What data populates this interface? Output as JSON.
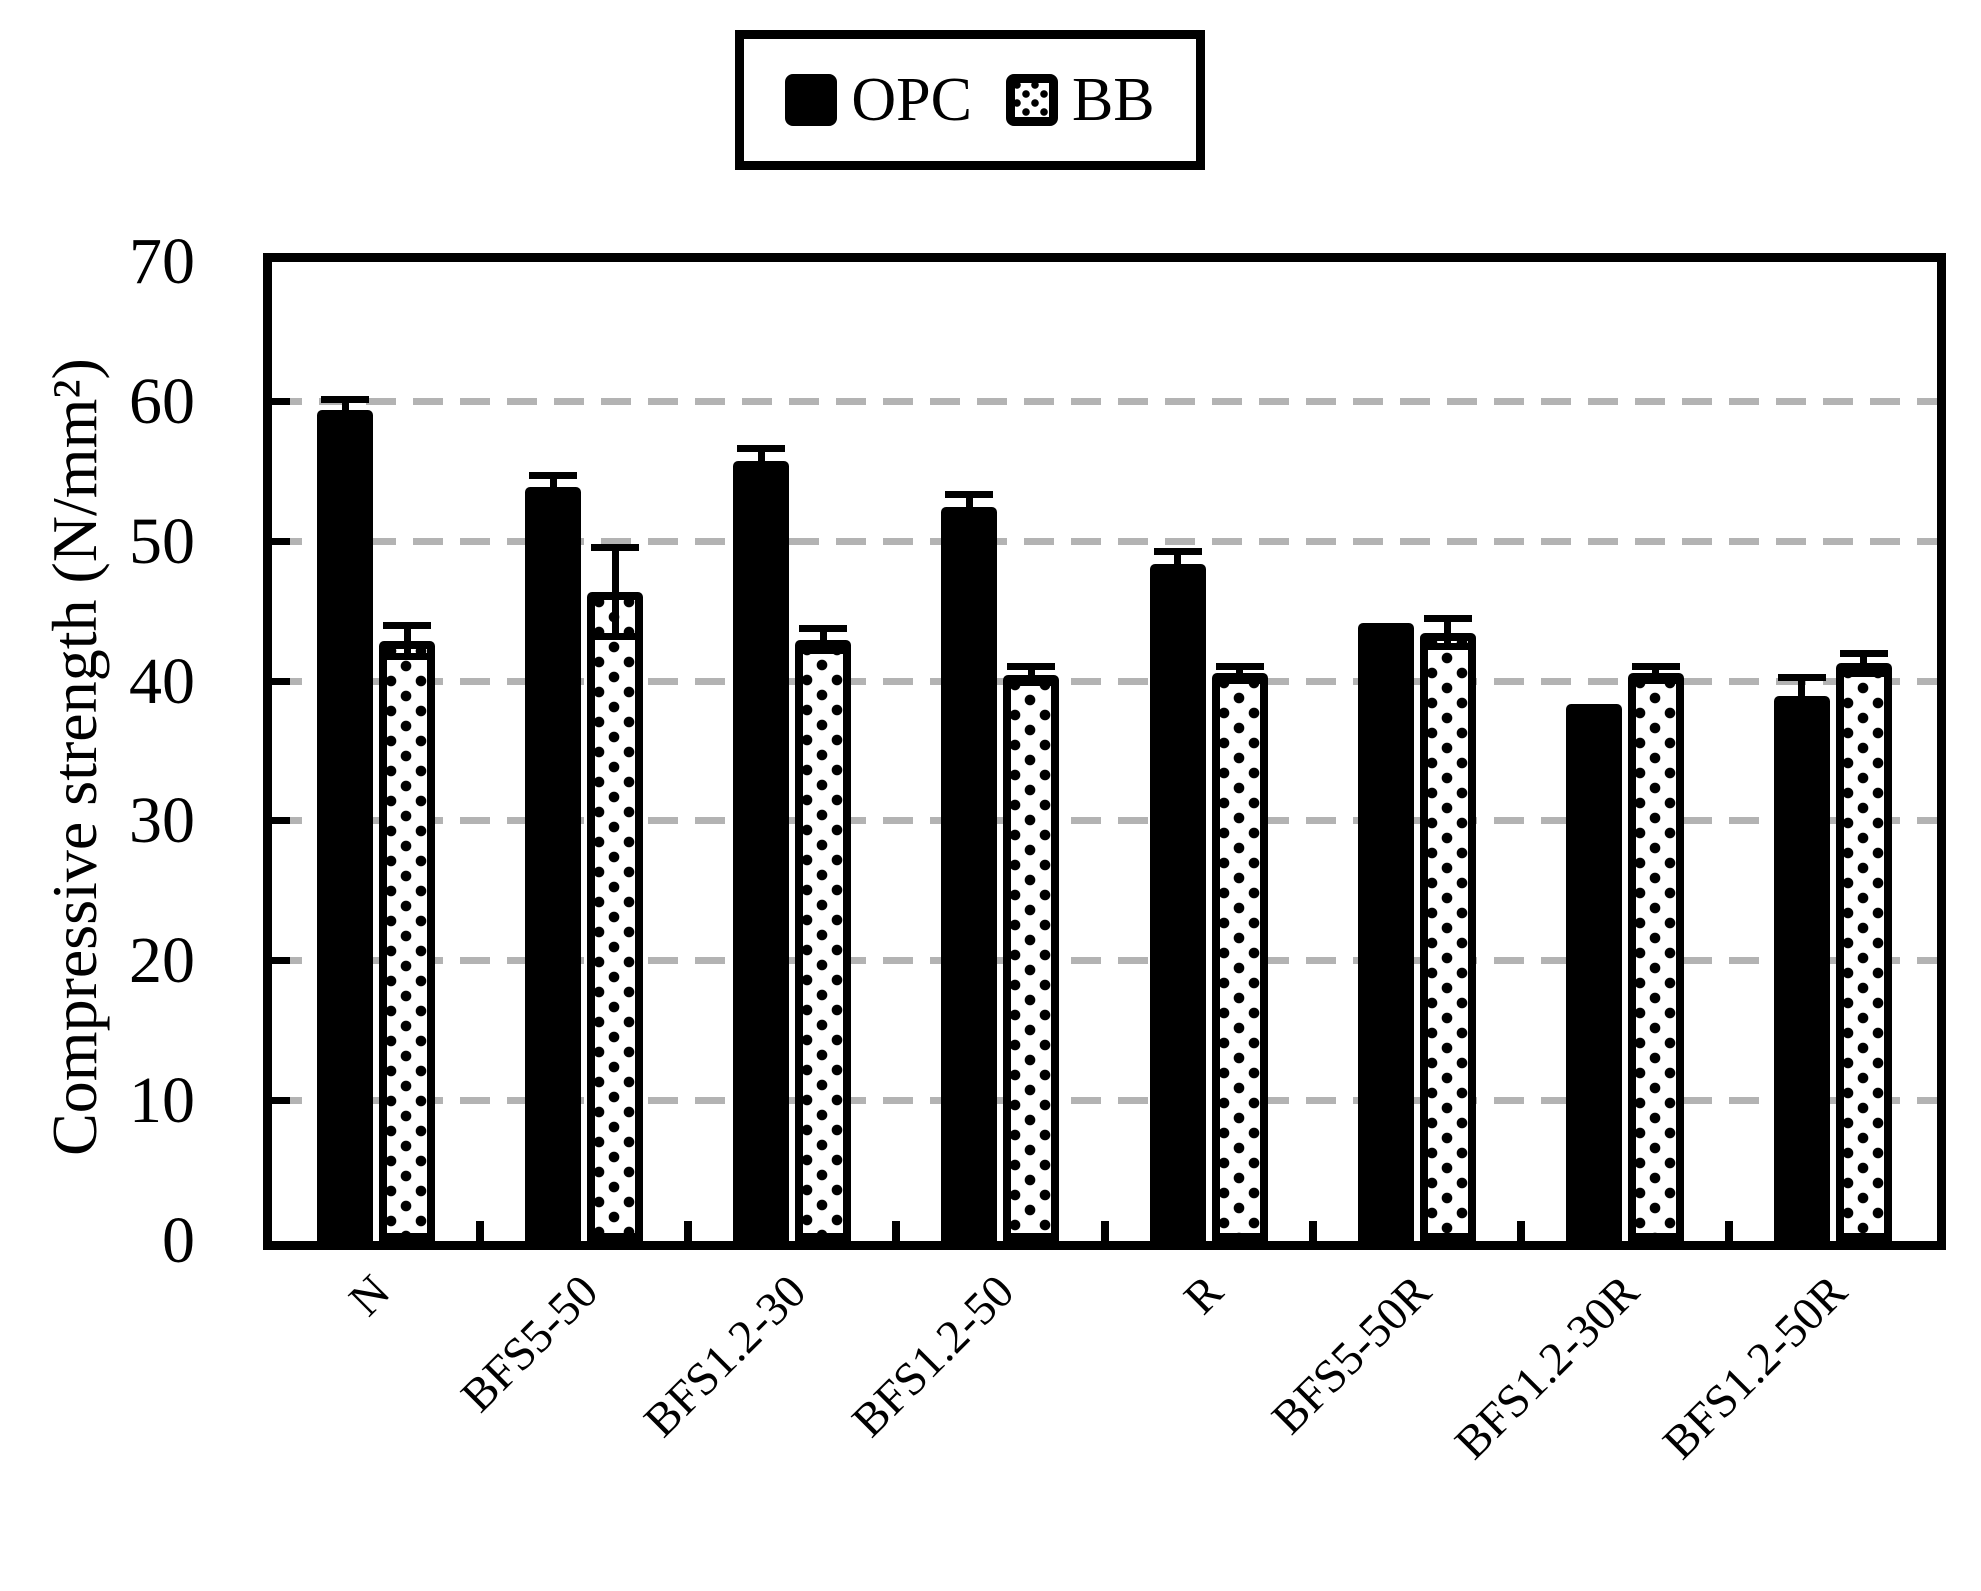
{
  "legend": {
    "items": [
      {
        "label": "OPC",
        "swatch": "solid-black-square"
      },
      {
        "label": "BB",
        "swatch": "black-bordered-dotted-square"
      }
    ]
  },
  "y_axis": {
    "title": "Compressive strength (N/mm²)",
    "tick_labels": [
      "0",
      "10",
      "20",
      "30",
      "40",
      "50",
      "60",
      "70"
    ]
  },
  "chart_data": {
    "type": "bar",
    "title": "",
    "categories": [
      "N",
      "BFS5-50",
      "BFS1.2-30",
      "BFS1.2-50",
      "R",
      "BFS5-50R",
      "BFS1.2-30R",
      "BFS1.2-50R"
    ],
    "series": [
      {
        "name": "OPC",
        "style": "solid-black",
        "values": [
          59.4,
          53.9,
          55.8,
          52.5,
          48.4,
          44.2,
          38.4,
          39.0
        ],
        "errors": [
          0.8,
          0.8,
          0.9,
          0.9,
          0.9,
          0,
          0,
          1.3
        ]
      },
      {
        "name": "BB",
        "style": "white-dotted-black-border",
        "values": [
          42.9,
          46.4,
          43.0,
          40.5,
          40.6,
          43.5,
          40.6,
          41.3
        ],
        "errors": [
          1.1,
          3.2,
          0.8,
          0.6,
          0.5,
          1.0,
          0.5,
          0.7
        ]
      }
    ],
    "xlabel": "",
    "ylabel": "Compressive strength (N/mm²)",
    "ylim": [
      0,
      70
    ],
    "ytick_interval": 10,
    "grid": "horizontal-dashed",
    "legend_position": "top-center",
    "error_bars": "symmetric-with-caps",
    "x_label_rotation_deg": 45,
    "colors": {
      "bar_fill": "#000000",
      "grid": "#b3b3b3",
      "background": "#ffffff",
      "text": "#000000"
    }
  }
}
